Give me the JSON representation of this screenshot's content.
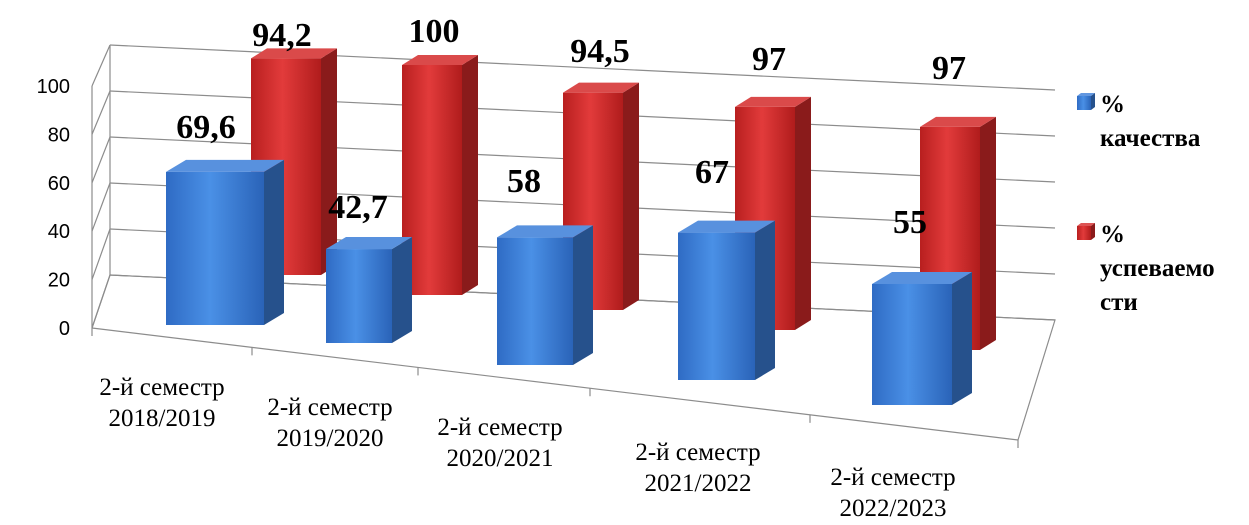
{
  "chart_data": {
    "type": "bar",
    "style": "3d-clustered-column",
    "categories": [
      [
        "2-й семестр",
        "2018/2019"
      ],
      [
        "2-й семестр",
        "2019/2020"
      ],
      [
        "2-й семестр",
        "2020/2021"
      ],
      [
        "2-й семестр",
        "2021/2022"
      ],
      [
        "2-й семестр",
        "2022/2023"
      ]
    ],
    "series": [
      {
        "name": "% качества",
        "legend_lines": [
          "%",
          "качества"
        ],
        "color": "#3b7dd8",
        "values": [
          69.6,
          42.7,
          58,
          67,
          55
        ],
        "labels": [
          "69,6",
          "42,7",
          "58",
          "67",
          "55"
        ]
      },
      {
        "name": "% успеваемости",
        "legend_lines": [
          "%",
          "успеваемо",
          "сти"
        ],
        "color": "#d42a2a",
        "values": [
          94.2,
          100,
          94.5,
          97,
          97
        ],
        "labels": [
          "94,2",
          "100",
          "94,5",
          "97",
          "97"
        ]
      }
    ],
    "yticks": [
      "0",
      "20",
      "40",
      "60",
      "80",
      "100"
    ],
    "ylim": [
      0,
      100
    ],
    "grid": true,
    "legend_position": "right"
  }
}
